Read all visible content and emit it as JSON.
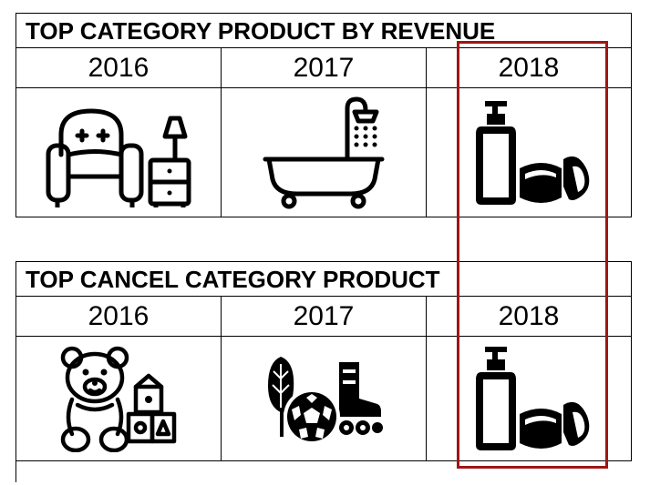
{
  "tables": [
    {
      "title": "TOP CATEGORY PRODUCT BY REVENUE",
      "years": [
        "2016",
        "2017",
        "2018"
      ],
      "icons": [
        "armchair-lamp-icon",
        "bathtub-shower-icon",
        "cosmetics-bottle-jar-icon"
      ]
    },
    {
      "title": "TOP CANCEL CATEGORY PRODUCT",
      "years": [
        "2016",
        "2017",
        "2018"
      ],
      "icons": [
        "teddy-bear-blocks-icon",
        "sports-ball-skate-icon",
        "cosmetics-bottle-jar-icon"
      ]
    }
  ],
  "colors": {
    "highlight": "#a01515",
    "lines": "#000000"
  }
}
